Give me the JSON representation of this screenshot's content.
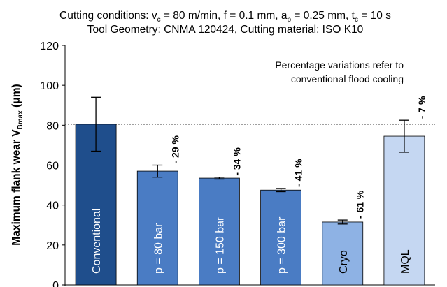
{
  "chart_data": {
    "type": "bar",
    "title_line1_prefix": "Cutting conditions: v",
    "title_line1_vsub": "c",
    "title_line1_v": " = 80 m/min, f = 0.1 mm, a",
    "title_line1_asub": "p",
    "title_line1_a": " = 0.25 mm, t",
    "title_line1_tsub": "c",
    "title_line1_t": " = 10 s",
    "title_line2": "Tool Geometry: CNMA 120424, Cutting material: ISO K10",
    "ylabel_main": "Maximum flank wear V",
    "ylabel_sub": "Bmax",
    "ylabel_unit": " (μm)",
    "ylim": [
      0,
      120
    ],
    "yticks": [
      0,
      20,
      40,
      60,
      80,
      100,
      120
    ],
    "categories": [
      "Conventional",
      "p = 80 bar",
      "p = 150 bar",
      "p = 300 bar",
      "Cryo",
      "MQL"
    ],
    "values": [
      80.5,
      57,
      53.5,
      47.5,
      31.5,
      74.5
    ],
    "errors": [
      13.5,
      3,
      0.5,
      0.8,
      1,
      8
    ],
    "percent_labels": [
      "",
      "- 29 %",
      "- 34 %",
      "- 41 %",
      "- 61 %",
      "- 7 %"
    ],
    "bar_colors": [
      "#1f4e8c",
      "#4a7cc4",
      "#4a7cc4",
      "#4a7cc4",
      "#8eb2e4",
      "#c5d7f2"
    ],
    "label_colors": [
      "#ffffff",
      "#ffffff",
      "#ffffff",
      "#ffffff",
      "#000000",
      "#000000"
    ],
    "reference_value": 80.5,
    "annotation_line1": "Percentage variations refer to",
    "annotation_line2": "conventional flood cooling"
  }
}
